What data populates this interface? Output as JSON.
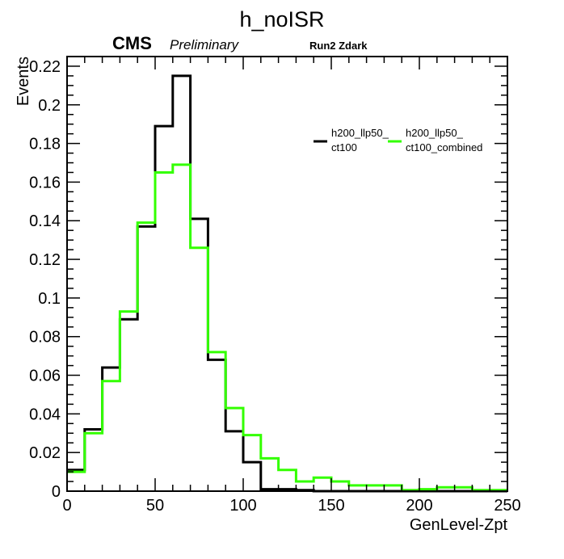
{
  "chart_data": {
    "type": "histogram",
    "title": "h_noISR",
    "xlabel": "GenLevel-Zpt",
    "ylabel": "Events",
    "header": {
      "experiment": "CMS",
      "status": "Preliminary",
      "run_label": "Run2 Zdark"
    },
    "xlim": [
      0,
      250
    ],
    "ylim": [
      0,
      0.225
    ],
    "x_ticks": [
      "0",
      "50",
      "100",
      "150",
      "200",
      "250"
    ],
    "x_tick_values": [
      0,
      50,
      100,
      150,
      200,
      250
    ],
    "y_ticks": [
      "0",
      "0.02",
      "0.04",
      "0.06",
      "0.08",
      "0.1",
      "0.12",
      "0.14",
      "0.16",
      "0.18",
      "0.2",
      "0.22"
    ],
    "y_tick_values": [
      0,
      0.02,
      0.04,
      0.06,
      0.08,
      0.1,
      0.12,
      0.14,
      0.16,
      0.18,
      0.2,
      0.22
    ],
    "bin_edges": [
      0,
      10,
      20,
      30,
      40,
      50,
      60,
      70,
      80,
      90,
      100,
      110,
      120,
      130,
      140,
      150,
      160,
      170,
      180,
      190,
      200,
      210,
      220,
      230,
      240,
      250
    ],
    "series": [
      {
        "name": "h200_llp50_ct100",
        "legend_line1": "h200_llp50_",
        "legend_line2": "ct100",
        "color": "#000000",
        "values": [
          0.011,
          0.032,
          0.064,
          0.089,
          0.137,
          0.189,
          0.215,
          0.141,
          0.068,
          0.031,
          0.015,
          0.001,
          0.001,
          0.0005,
          0,
          0,
          0,
          0,
          0,
          0,
          0,
          0,
          0,
          0,
          0
        ]
      },
      {
        "name": "h200_llp50_ct100_combined",
        "legend_line1": "h200_llp50_",
        "legend_line2": "ct100_combined",
        "color": "#33ff00",
        "values": [
          0.01,
          0.03,
          0.057,
          0.093,
          0.139,
          0.165,
          0.169,
          0.126,
          0.072,
          0.043,
          0.029,
          0.017,
          0.011,
          0.005,
          0.007,
          0.005,
          0.003,
          0.003,
          0.003,
          0.0005,
          0.001,
          0.002,
          0.002,
          0.0005,
          0.0005
        ]
      }
    ],
    "grid": false,
    "legend_position": "top-right"
  }
}
